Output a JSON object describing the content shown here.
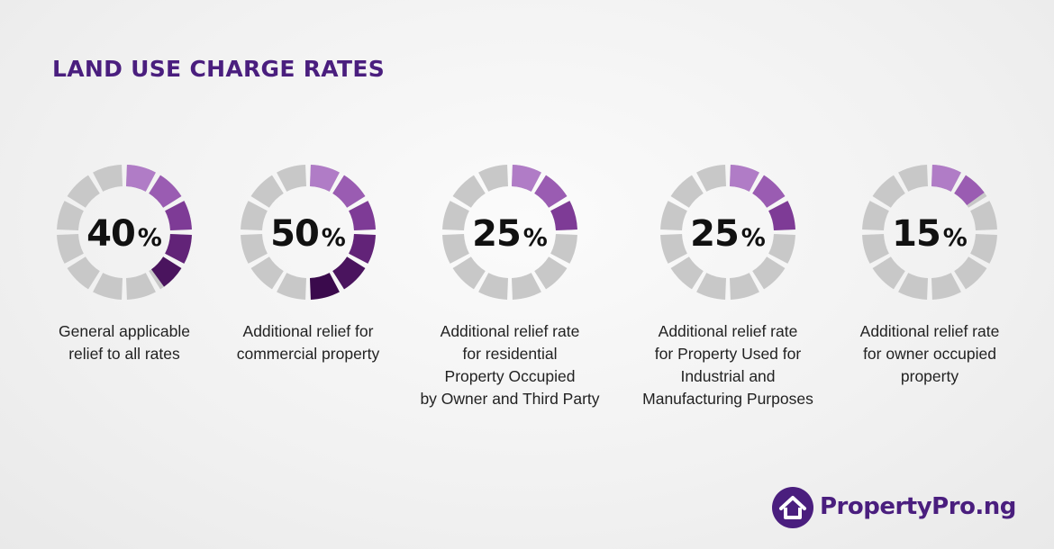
{
  "title": "LAND USE CHARGE RATES",
  "colors": {
    "title": "#4a1e7e",
    "ring_empty": "#c8c8c8",
    "ring_filled": [
      "#b07cc6",
      "#9a5cb2",
      "#7e3b96",
      "#622378",
      "#4a145e",
      "#3a0a4c"
    ]
  },
  "chart_data": {
    "type": "donut",
    "segments_per_ring": 12,
    "items": [
      {
        "value": 40,
        "unit": "%",
        "label_lines": [
          "General applicable",
          "relief to all rates"
        ]
      },
      {
        "value": 50,
        "unit": "%",
        "label_lines": [
          "Additional relief for",
          "commercial property"
        ]
      },
      {
        "value": 25,
        "unit": "%",
        "label_lines": [
          "Additional relief rate",
          "for residential",
          "Property Occupied",
          "by Owner and Third Party"
        ]
      },
      {
        "value": 25,
        "unit": "%",
        "label_lines": [
          "Additional relief rate",
          "for Property Used for",
          "Industrial and",
          "Manufacturing Purposes"
        ]
      },
      {
        "value": 15,
        "unit": "%",
        "label_lines": [
          "Additional relief rate",
          "for owner occupied",
          "property"
        ]
      }
    ]
  },
  "logo": {
    "text": "PropertyPro.ng",
    "icon": "house-icon"
  }
}
